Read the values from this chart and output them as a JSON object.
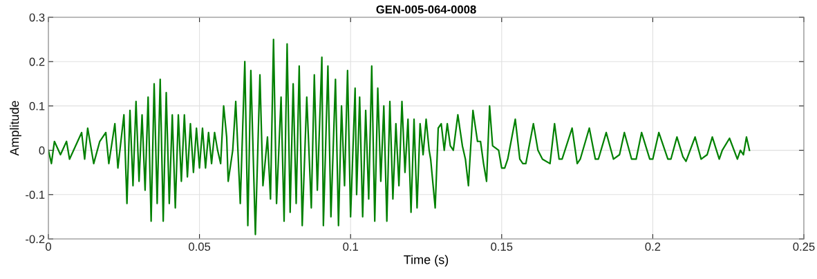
{
  "chart_data": {
    "type": "line",
    "title": "GEN-005-064-0008",
    "xlabel": "Time (s)",
    "ylabel": "Amplitude",
    "xlim": [
      0,
      0.25
    ],
    "xticks": [
      0,
      0.05,
      0.1,
      0.15,
      0.2,
      0.25
    ],
    "ylim": [
      -0.2,
      0.3
    ],
    "yticks": [
      {
        "value": -0.2,
        "label": "-0.2"
      },
      {
        "value": -0.1,
        "label": "-0.1"
      },
      0,
      0.1,
      0.2,
      0.3
    ],
    "grid": true,
    "marker": "none",
    "line_style": "solid",
    "series": [
      {
        "color": "#008000",
        "x": [
          0.0,
          0.001,
          0.002,
          0.004,
          0.006,
          0.007,
          0.009,
          0.011,
          0.012,
          0.013,
          0.015,
          0.017,
          0.019,
          0.02,
          0.022,
          0.023,
          0.025,
          0.026,
          0.027,
          0.028,
          0.029,
          0.03,
          0.031,
          0.032,
          0.033,
          0.034,
          0.035,
          0.036,
          0.037,
          0.038,
          0.039,
          0.04,
          0.041,
          0.042,
          0.043,
          0.044,
          0.045,
          0.046,
          0.047,
          0.048,
          0.049,
          0.05,
          0.051,
          0.052,
          0.053,
          0.054,
          0.055,
          0.056,
          0.057,
          0.058,
          0.059,
          0.0595,
          0.061,
          0.062,
          0.0635,
          0.065,
          0.066,
          0.067,
          0.0685,
          0.07,
          0.071,
          0.0725,
          0.0735,
          0.0745,
          0.0755,
          0.077,
          0.078,
          0.079,
          0.08,
          0.081,
          0.082,
          0.083,
          0.084,
          0.0855,
          0.087,
          0.088,
          0.089,
          0.0905,
          0.091,
          0.0925,
          0.0935,
          0.095,
          0.096,
          0.097,
          0.098,
          0.099,
          0.1,
          0.1015,
          0.102,
          0.103,
          0.104,
          0.105,
          0.106,
          0.107,
          0.108,
          0.109,
          0.11,
          0.111,
          0.112,
          0.113,
          0.114,
          0.115,
          0.116,
          0.117,
          0.118,
          0.119,
          0.12,
          0.121,
          0.122,
          0.123,
          0.124,
          0.125,
          0.126,
          0.1265,
          0.128,
          0.129,
          0.13,
          0.131,
          0.132,
          0.133,
          0.134,
          0.1355,
          0.137,
          0.138,
          0.139,
          0.1395,
          0.1405,
          0.142,
          0.143,
          0.144,
          0.145,
          0.146,
          0.147,
          0.149,
          0.15,
          0.151,
          0.152,
          0.1545,
          0.156,
          0.157,
          0.158,
          0.1605,
          0.162,
          0.1635,
          0.166,
          0.1675,
          0.169,
          0.17,
          0.1733,
          0.175,
          0.176,
          0.179,
          0.181,
          0.182,
          0.1846,
          0.187,
          0.189,
          0.1906,
          0.193,
          0.1945,
          0.1963,
          0.199,
          0.2,
          0.202,
          0.205,
          0.206,
          0.208,
          0.21,
          0.211,
          0.214,
          0.216,
          0.218,
          0.2197,
          0.222,
          0.223,
          0.2254,
          0.228,
          0.229,
          0.23,
          0.231,
          0.232
        ],
        "values": [
          0.0,
          -0.03,
          0.02,
          -0.01,
          0.02,
          -0.02,
          0.01,
          0.04,
          -0.02,
          0.05,
          -0.03,
          0.02,
          0.04,
          -0.03,
          0.06,
          -0.04,
          0.08,
          -0.12,
          0.09,
          -0.08,
          0.11,
          -0.07,
          0.08,
          -0.09,
          0.12,
          -0.16,
          0.15,
          -0.12,
          0.16,
          -0.16,
          0.13,
          -0.12,
          0.08,
          -0.13,
          0.08,
          -0.07,
          0.08,
          -0.06,
          0.06,
          -0.05,
          0.05,
          -0.04,
          0.05,
          -0.04,
          0.04,
          -0.03,
          0.04,
          0.0,
          -0.03,
          0.1,
          0.03,
          -0.07,
          0.0,
          0.11,
          -0.12,
          0.2,
          -0.17,
          0.18,
          -0.19,
          0.17,
          -0.08,
          0.03,
          -0.11,
          0.25,
          -0.12,
          0.12,
          -0.16,
          0.24,
          -0.14,
          0.15,
          -0.12,
          0.19,
          -0.17,
          0.12,
          -0.13,
          0.17,
          -0.09,
          0.21,
          -0.17,
          0.19,
          -0.15,
          0.16,
          -0.17,
          0.1,
          -0.08,
          0.18,
          -0.15,
          0.14,
          -0.1,
          0.12,
          -0.15,
          0.09,
          -0.11,
          0.19,
          -0.16,
          0.14,
          -0.07,
          0.1,
          -0.16,
          0.11,
          -0.11,
          0.06,
          -0.08,
          0.11,
          -0.05,
          0.07,
          -0.14,
          0.07,
          -0.13,
          0.06,
          -0.01,
          0.07,
          0.0,
          -0.02,
          -0.13,
          0.05,
          0.06,
          0.0,
          0.06,
          0.01,
          0.0,
          0.08,
          0.01,
          -0.02,
          -0.08,
          -0.02,
          0.09,
          0.02,
          0.02,
          -0.03,
          -0.07,
          0.1,
          0.01,
          0.0,
          -0.04,
          -0.04,
          -0.02,
          0.07,
          -0.02,
          -0.03,
          -0.03,
          0.06,
          0.0,
          -0.02,
          -0.03,
          0.06,
          -0.02,
          -0.02,
          0.05,
          -0.03,
          -0.02,
          0.05,
          -0.02,
          -0.02,
          0.04,
          -0.02,
          -0.01,
          0.04,
          -0.02,
          -0.02,
          0.04,
          -0.02,
          -0.02,
          0.04,
          -0.02,
          -0.02,
          0.03,
          -0.015,
          -0.025,
          0.03,
          -0.02,
          -0.01,
          0.03,
          -0.02,
          0.0,
          0.027,
          -0.02,
          0.0,
          -0.01,
          0.03,
          0.0
        ]
      }
    ]
  }
}
